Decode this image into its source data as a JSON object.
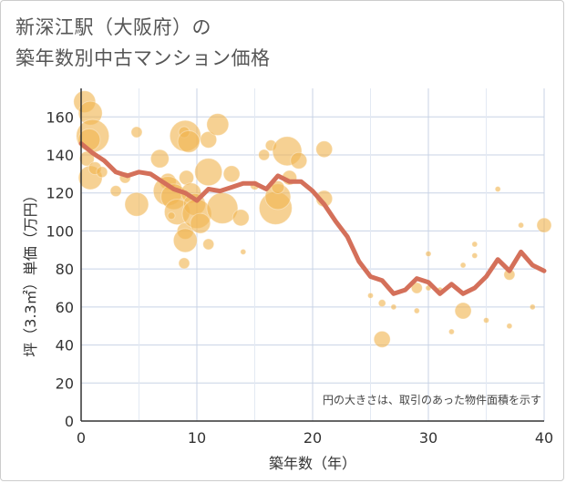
{
  "title_line1": "新深江駅（大阪府）の",
  "title_line2": "築年数別中古マンション価格",
  "note": "円の大きさは、取引のあった物件面積を示す",
  "colors": {
    "bubble": "#f0b550",
    "line": "#d4705a",
    "grid": "#c8d3e6",
    "axis": "#333333",
    "plot_bg": "#ffffff"
  },
  "chart_data": {
    "type": "scatter",
    "xlabel": "築年数（年）",
    "ylabel": "坪（3.3㎡）単価（万円）",
    "xlim": [
      0,
      40
    ],
    "ylim": [
      0,
      175
    ],
    "xticks": [
      0,
      10,
      20,
      30,
      40
    ],
    "yticks": [
      0,
      20,
      40,
      60,
      80,
      100,
      120,
      140,
      160
    ],
    "grid": true,
    "series": [
      {
        "kind": "bubble",
        "points": [
          {
            "x": 0.3,
            "y": 168,
            "s": 12
          },
          {
            "x": 0.8,
            "y": 162,
            "s": 13
          },
          {
            "x": 1.0,
            "y": 150,
            "s": 18
          },
          {
            "x": 0.7,
            "y": 148,
            "s": 12
          },
          {
            "x": 0.5,
            "y": 138,
            "s": 8
          },
          {
            "x": 0.8,
            "y": 128,
            "s": 13
          },
          {
            "x": 1.2,
            "y": 133,
            "s": 7
          },
          {
            "x": 1.8,
            "y": 131,
            "s": 6
          },
          {
            "x": 3.0,
            "y": 121,
            "s": 6
          },
          {
            "x": 3.8,
            "y": 128,
            "s": 6
          },
          {
            "x": 4.8,
            "y": 152,
            "s": 6
          },
          {
            "x": 4.8,
            "y": 114,
            "s": 13
          },
          {
            "x": 6.8,
            "y": 138,
            "s": 10
          },
          {
            "x": 7.5,
            "y": 126,
            "s": 9
          },
          {
            "x": 7.5,
            "y": 121,
            "s": 16
          },
          {
            "x": 8.0,
            "y": 118,
            "s": 14
          },
          {
            "x": 8.3,
            "y": 110,
            "s": 14
          },
          {
            "x": 7.8,
            "y": 108,
            "s": 4
          },
          {
            "x": 9.0,
            "y": 150,
            "s": 17
          },
          {
            "x": 8.9,
            "y": 152,
            "s": 6
          },
          {
            "x": 9.3,
            "y": 147,
            "s": 12
          },
          {
            "x": 9.1,
            "y": 128,
            "s": 8
          },
          {
            "x": 9.5,
            "y": 120,
            "s": 11
          },
          {
            "x": 9.8,
            "y": 114,
            "s": 12
          },
          {
            "x": 9.0,
            "y": 100,
            "s": 9
          },
          {
            "x": 9.0,
            "y": 95,
            "s": 13
          },
          {
            "x": 8.9,
            "y": 83,
            "s": 6
          },
          {
            "x": 10.0,
            "y": 109,
            "s": 16
          },
          {
            "x": 10.3,
            "y": 104,
            "s": 11
          },
          {
            "x": 11.0,
            "y": 131,
            "s": 15
          },
          {
            "x": 11.0,
            "y": 148,
            "s": 9
          },
          {
            "x": 11.0,
            "y": 93,
            "s": 6
          },
          {
            "x": 11.8,
            "y": 156,
            "s": 12
          },
          {
            "x": 12.2,
            "y": 112,
            "s": 17
          },
          {
            "x": 13.0,
            "y": 130,
            "s": 9
          },
          {
            "x": 13.8,
            "y": 107,
            "s": 9
          },
          {
            "x": 14.0,
            "y": 89,
            "s": 3
          },
          {
            "x": 15.0,
            "y": 124,
            "s": 5
          },
          {
            "x": 15.8,
            "y": 140,
            "s": 6
          },
          {
            "x": 16.4,
            "y": 145,
            "s": 6
          },
          {
            "x": 16.8,
            "y": 112,
            "s": 18
          },
          {
            "x": 17.0,
            "y": 118,
            "s": 14
          },
          {
            "x": 17.0,
            "y": 123,
            "s": 7
          },
          {
            "x": 17.8,
            "y": 142,
            "s": 16
          },
          {
            "x": 18.0,
            "y": 128,
            "s": 8
          },
          {
            "x": 18.8,
            "y": 137,
            "s": 9
          },
          {
            "x": 21.0,
            "y": 143,
            "s": 9
          },
          {
            "x": 21.0,
            "y": 117,
            "s": 9
          },
          {
            "x": 25.0,
            "y": 66,
            "s": 3
          },
          {
            "x": 26.0,
            "y": 43,
            "s": 9
          },
          {
            "x": 26.0,
            "y": 62,
            "s": 4
          },
          {
            "x": 27.0,
            "y": 60,
            "s": 3
          },
          {
            "x": 29.0,
            "y": 70,
            "s": 6
          },
          {
            "x": 29.0,
            "y": 58,
            "s": 3
          },
          {
            "x": 30.0,
            "y": 88,
            "s": 3
          },
          {
            "x": 30.0,
            "y": 70,
            "s": 3
          },
          {
            "x": 31.0,
            "y": 69,
            "s": 3
          },
          {
            "x": 32.0,
            "y": 47,
            "s": 3
          },
          {
            "x": 33.0,
            "y": 58,
            "s": 9
          },
          {
            "x": 33.0,
            "y": 82,
            "s": 3
          },
          {
            "x": 34.0,
            "y": 93,
            "s": 3
          },
          {
            "x": 34.0,
            "y": 87,
            "s": 3
          },
          {
            "x": 35.0,
            "y": 53,
            "s": 3
          },
          {
            "x": 36.0,
            "y": 122,
            "s": 3
          },
          {
            "x": 37.0,
            "y": 77,
            "s": 6
          },
          {
            "x": 37.0,
            "y": 50,
            "s": 3
          },
          {
            "x": 38.0,
            "y": 103,
            "s": 3
          },
          {
            "x": 39.0,
            "y": 60,
            "s": 3
          },
          {
            "x": 40.0,
            "y": 103,
            "s": 8
          }
        ]
      },
      {
        "kind": "line",
        "x": [
          0,
          1,
          2,
          3,
          4,
          5,
          6,
          7,
          8,
          9,
          10,
          11,
          12,
          13,
          14,
          15,
          16,
          17,
          18,
          19,
          20,
          21,
          22,
          23,
          24,
          25,
          26,
          27,
          28,
          29,
          30,
          31,
          32,
          33,
          34,
          35,
          36,
          37,
          38,
          39,
          40
        ],
        "y": [
          146,
          141,
          137,
          131,
          129,
          131,
          130,
          126,
          122,
          120,
          116,
          122,
          121,
          123,
          125,
          125,
          122,
          129,
          126,
          126,
          121,
          114,
          105,
          97,
          84,
          76,
          74,
          67,
          69,
          75,
          73,
          67,
          72,
          67,
          70,
          76,
          85,
          79,
          89,
          82,
          79
        ]
      }
    ]
  }
}
